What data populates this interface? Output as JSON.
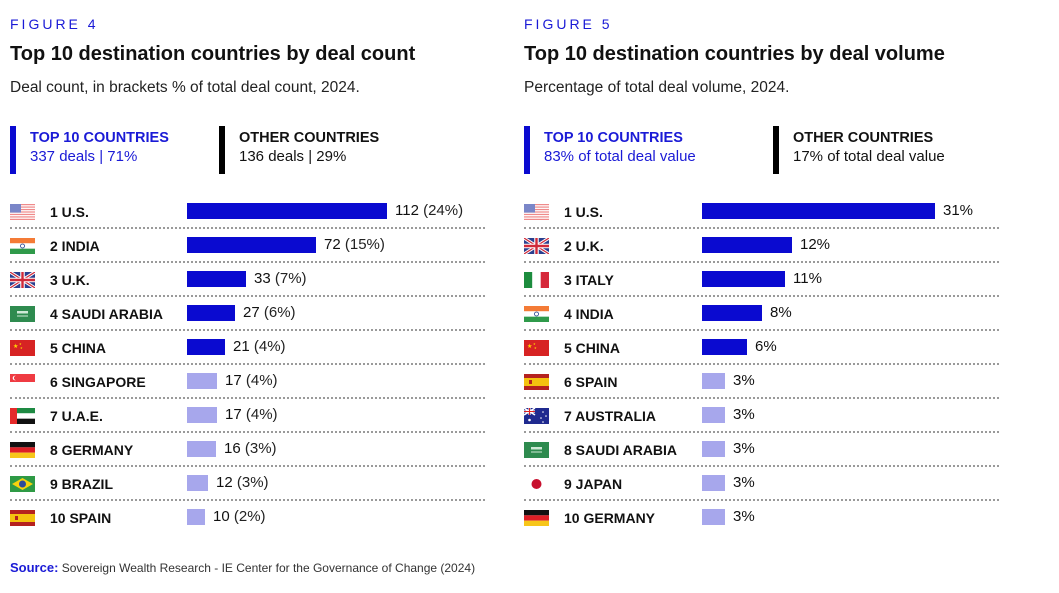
{
  "colors": {
    "accent": "#0a0ad0",
    "top5_bar": "#0a0ad0",
    "rest_bar": "#a7a7ec",
    "other_marker": "#000000"
  },
  "chart_data": [
    {
      "type": "bar",
      "orientation": "horizontal",
      "figure_label": "FIGURE 4",
      "title": "Top 10 destination countries by deal count",
      "subtitle": "Deal count, in brackets % of total deal count, 2024.",
      "summary": {
        "top": {
          "heading": "TOP 10 COUNTRIES",
          "value": "337 deals | 71%"
        },
        "other": {
          "heading": "OTHER COUNTRIES",
          "value": "136 deals | 29%"
        }
      },
      "xlim": [
        0,
        112
      ],
      "categories": [
        "1 U.S.",
        "2 INDIA",
        "3 U.K.",
        "4 SAUDI ARABIA",
        "5 CHINA",
        "6 SINGAPORE",
        "7 U.A.E.",
        "8 GERMANY",
        "9 BRAZIL",
        "10 SPAIN"
      ],
      "flags": [
        "us-flag-icon",
        "india-flag-icon",
        "uk-flag-icon",
        "saudi-arabia-flag-icon",
        "china-flag-icon",
        "singapore-flag-icon",
        "uae-flag-icon",
        "germany-flag-icon",
        "brazil-flag-icon",
        "spain-flag-icon"
      ],
      "values": [
        112,
        72,
        33,
        27,
        21,
        17,
        17,
        16,
        12,
        10
      ],
      "value_labels": [
        "112",
        "72",
        "33",
        "27",
        "21",
        "17",
        "17",
        "16",
        "12",
        "10"
      ],
      "pct_labels": [
        "(24%)",
        "(15%)",
        "(7%)",
        "(6%)",
        "(4%)",
        "(4%)",
        "(4%)",
        "(3%)",
        "(3%)",
        "(2%)"
      ]
    },
    {
      "type": "bar",
      "orientation": "horizontal",
      "figure_label": "FIGURE 5",
      "title": "Top 10 destination countries by deal volume",
      "subtitle": "Percentage of total deal volume, 2024.",
      "summary": {
        "top": {
          "heading": "TOP 10 COUNTRIES",
          "value": "83% of total deal value"
        },
        "other": {
          "heading": "OTHER COUNTRIES",
          "value": "17% of total deal value"
        }
      },
      "xlim": [
        0,
        31
      ],
      "categories": [
        "1 U.S.",
        "2 U.K.",
        "3 ITALY",
        "4 INDIA",
        "5 CHINA",
        "6 SPAIN",
        "7 AUSTRALIA",
        "8 SAUDI ARABIA",
        "9 JAPAN",
        "10 GERMANY"
      ],
      "flags": [
        "us-flag-icon",
        "uk-flag-icon",
        "italy-flag-icon",
        "india-flag-icon",
        "china-flag-icon",
        "spain-flag-icon",
        "australia-flag-icon",
        "saudi-arabia-flag-icon",
        "japan-flag-icon",
        "germany-flag-icon"
      ],
      "values": [
        31,
        12,
        11,
        8,
        6,
        3,
        3,
        3,
        3,
        3
      ],
      "value_labels": [
        "31%",
        "12%",
        "11%",
        "8%",
        "6%",
        "3%",
        "3%",
        "3%",
        "3%",
        "3%"
      ],
      "pct_labels": [
        "",
        "",
        "",
        "",
        "",
        "",
        "",
        "",
        "",
        ""
      ]
    }
  ],
  "source": {
    "label": "Source:",
    "text": " Sovereign Wealth Research - IE Center for the Governance of Change (2024)"
  }
}
